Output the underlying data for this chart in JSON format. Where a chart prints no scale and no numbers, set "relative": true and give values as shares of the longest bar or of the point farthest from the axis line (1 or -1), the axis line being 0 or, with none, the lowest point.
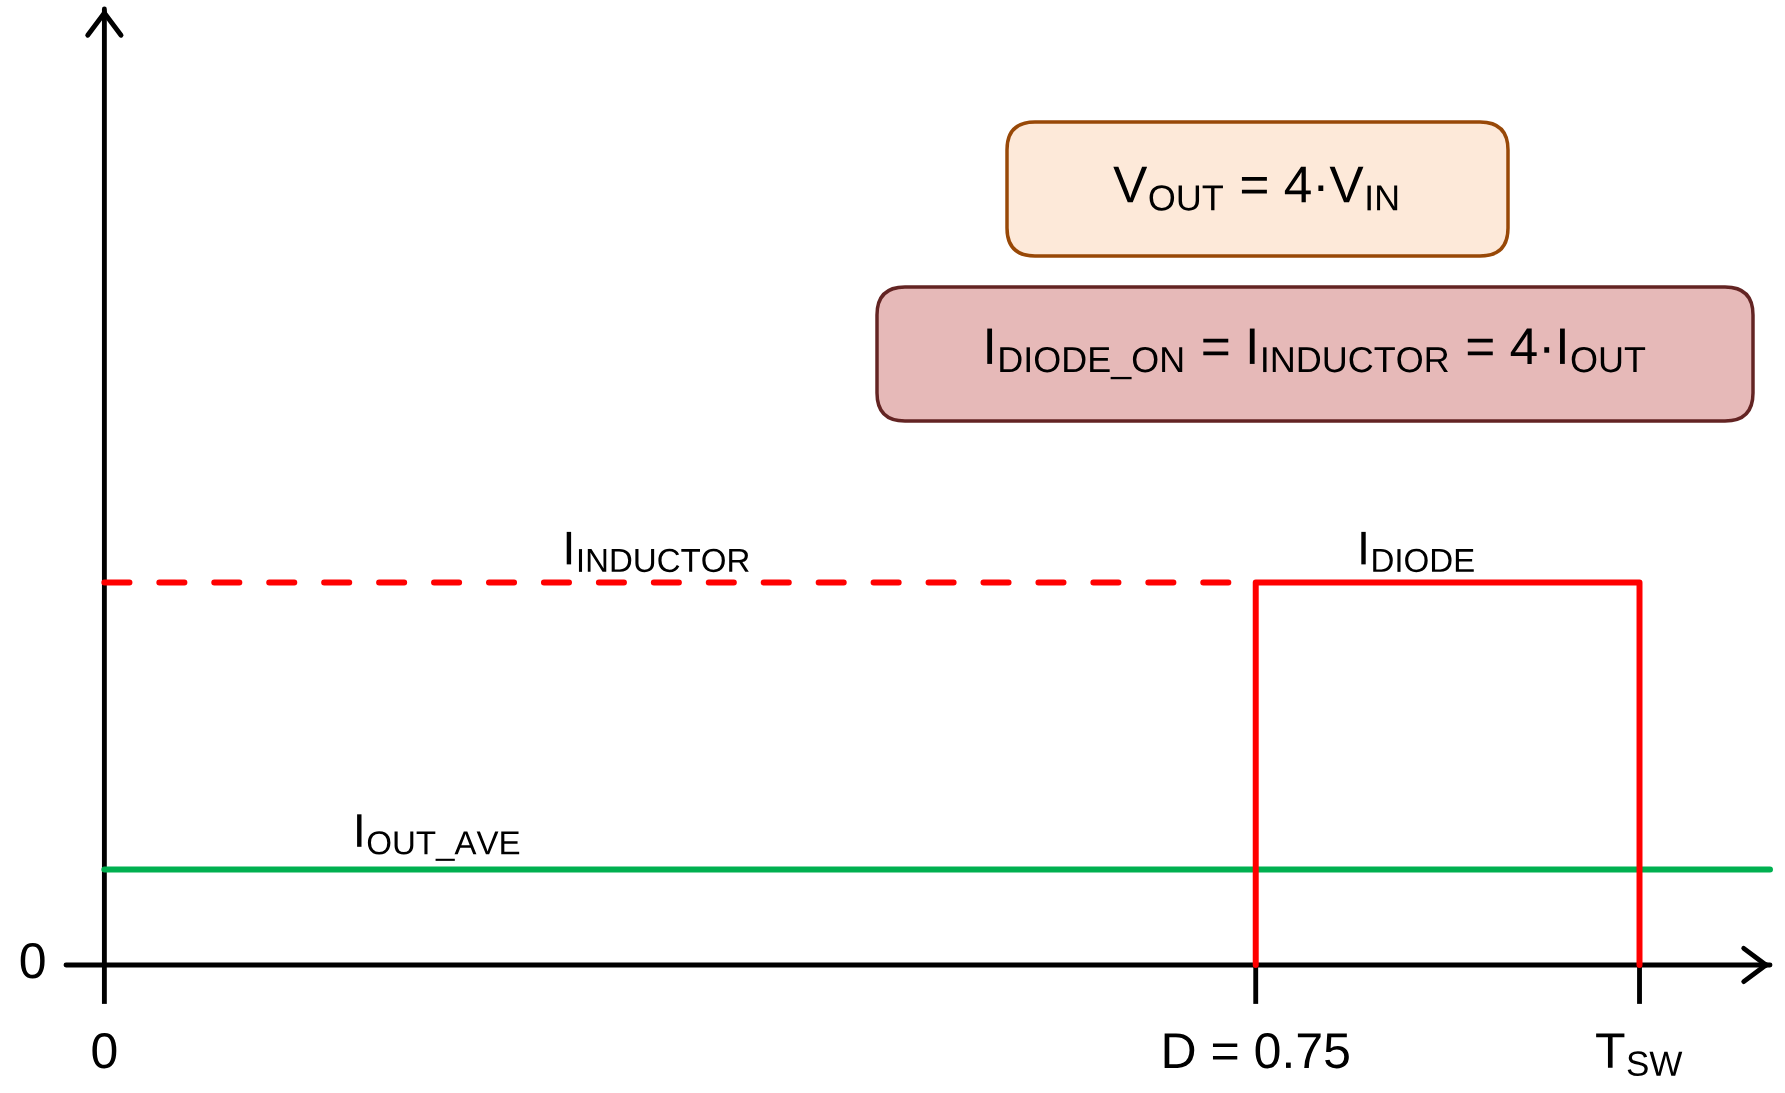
{
  "chart_data": {
    "type": "line",
    "relative": true,
    "xlim": [
      -0.025,
      1.085
    ],
    "xticks": [
      0,
      {
        "value": 0.75,
        "label": "D = 0.75"
      },
      {
        "value": 1,
        "label": "T$_{SW}$"
      }
    ],
    "series": [
      {
        "name": "I$_{OUT_AVE}$",
        "color": "#00b050",
        "x": [
          0,
          1.085
        ],
        "values": [
          0.25,
          0.25
        ],
        "line_style": "solid"
      },
      {
        "name": "I$_{INDUCTOR}$",
        "color": "#ff0000",
        "x": [
          0,
          0.75
        ],
        "values": [
          1,
          1
        ],
        "line_style": "dashed"
      },
      {
        "name": "I$_{DIODE}$",
        "color": "#ff0000",
        "x": [
          0.75,
          0.75,
          1,
          1
        ],
        "values": [
          0,
          1,
          1,
          0
        ],
        "line_style": "solid"
      }
    ],
    "annotations": [
      "0",
      "V$_{OUT}$ = 4·V$_{IN}$",
      "I$_{DIODE_ON}$ = I$_{INDUCTOR}$ = 4·I$_{OUT}$"
    ]
  }
}
